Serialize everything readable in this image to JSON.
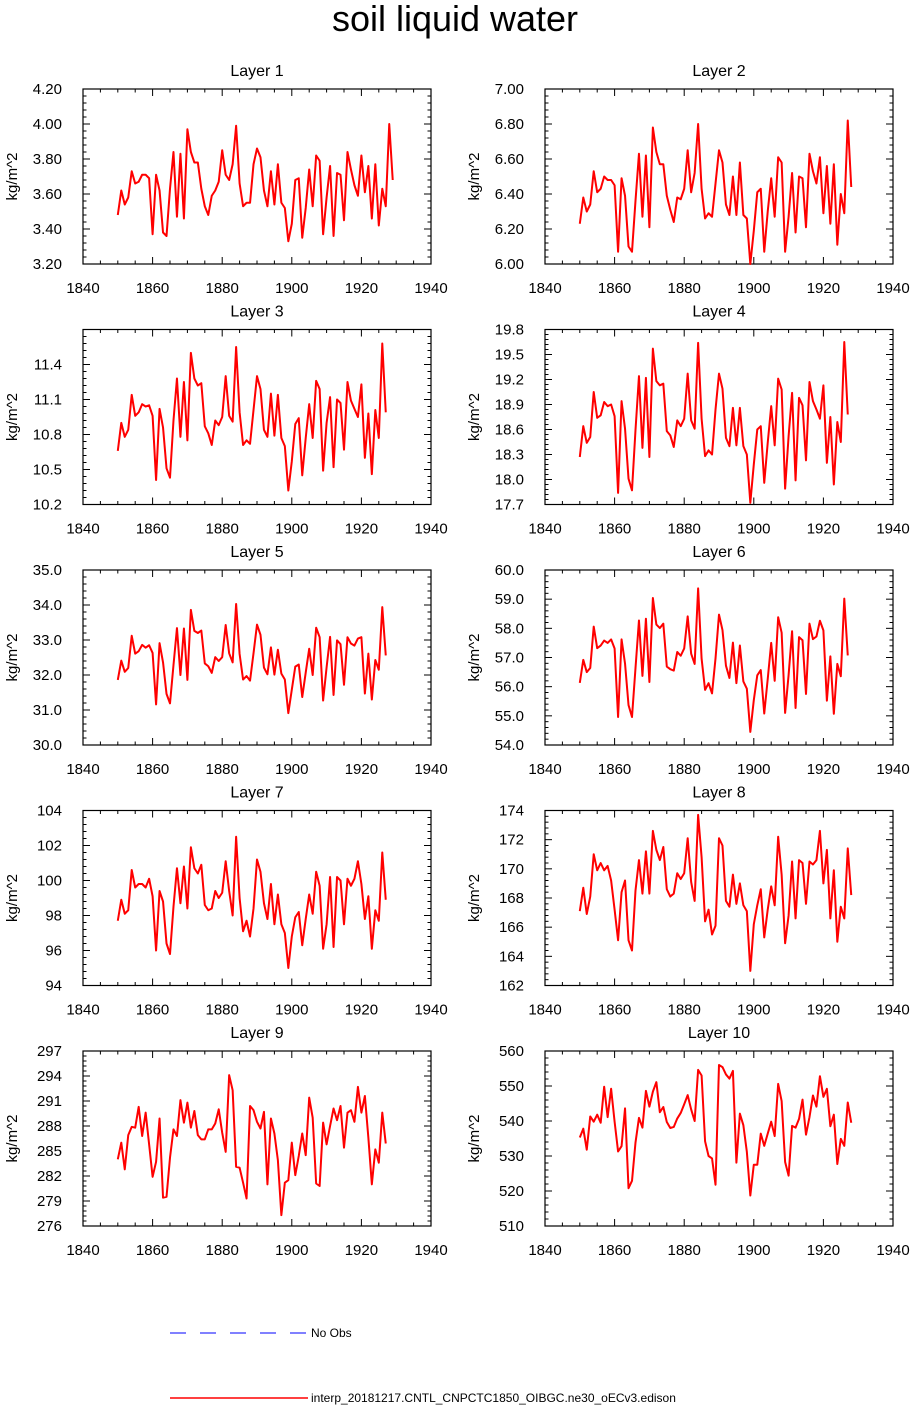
{
  "page_title": "soil liquid water",
  "legend": {
    "obs_label": "No Obs",
    "obs_color": "#0000ff",
    "model_label": "interp_20181217.CNTL_CNPCTC1850_OIBGC.ne30_oECv3.edison",
    "model_color": "#ff0000"
  },
  "chart_data": [
    {
      "type": "line",
      "title": "Layer 1",
      "ylabel": "kg/m^2",
      "xlim": [
        1840,
        1940
      ],
      "xticks": [
        "1840",
        "1860",
        "1880",
        "1900",
        "1920",
        "1940"
      ],
      "ylim": [
        3.2,
        4.2
      ],
      "yticks": [
        "3.20",
        "3.40",
        "3.60",
        "3.80",
        "4.00",
        "4.20"
      ],
      "x_start": 1850,
      "values": [
        3.48,
        3.62,
        3.54,
        3.58,
        3.73,
        3.66,
        3.67,
        3.71,
        3.71,
        3.69,
        3.37,
        3.71,
        3.62,
        3.38,
        3.36,
        3.63,
        3.84,
        3.47,
        3.83,
        3.46,
        3.97,
        3.84,
        3.78,
        3.78,
        3.63,
        3.53,
        3.48,
        3.59,
        3.62,
        3.67,
        3.85,
        3.71,
        3.68,
        3.77,
        3.99,
        3.66,
        3.53,
        3.55,
        3.55,
        3.77,
        3.86,
        3.81,
        3.62,
        3.53,
        3.73,
        3.54,
        3.77,
        3.55,
        3.52,
        3.33,
        3.43,
        3.68,
        3.69,
        3.35,
        3.52,
        3.74,
        3.53,
        3.82,
        3.79,
        3.37,
        3.58,
        3.76,
        3.36,
        3.72,
        3.71,
        3.45,
        3.84,
        3.74,
        3.65,
        3.59,
        3.82,
        3.61,
        3.76,
        3.46,
        3.77,
        3.42,
        3.63,
        3.53,
        4.0,
        3.68
      ]
    },
    {
      "type": "line",
      "title": "Layer 2",
      "ylabel": "kg/m^2",
      "xlim": [
        1840,
        1940
      ],
      "xticks": [
        "1840",
        "1860",
        "1880",
        "1900",
        "1920",
        "1940"
      ],
      "ylim": [
        6.0,
        7.0
      ],
      "yticks": [
        "6.00",
        "6.20",
        "6.40",
        "6.60",
        "6.80",
        "7.00"
      ],
      "x_start": 1850,
      "values": [
        6.23,
        6.38,
        6.3,
        6.34,
        6.53,
        6.41,
        6.43,
        6.5,
        6.48,
        6.48,
        6.45,
        6.07,
        6.49,
        6.39,
        6.1,
        6.07,
        6.36,
        6.63,
        6.27,
        6.62,
        6.21,
        6.78,
        6.64,
        6.57,
        6.57,
        6.39,
        6.31,
        6.24,
        6.38,
        6.37,
        6.43,
        6.65,
        6.41,
        6.52,
        6.8,
        6.43,
        6.26,
        6.29,
        6.27,
        6.46,
        6.65,
        6.58,
        6.34,
        6.28,
        6.5,
        6.28,
        6.58,
        6.28,
        6.26,
        6.0,
        6.19,
        6.41,
        6.43,
        6.07,
        6.3,
        6.49,
        6.27,
        6.61,
        6.58,
        6.07,
        6.27,
        6.52,
        6.18,
        6.5,
        6.49,
        6.21,
        6.63,
        6.53,
        6.46,
        6.61,
        6.29,
        6.56,
        6.23,
        6.57,
        6.11,
        6.4,
        6.29,
        6.82,
        6.44
      ]
    },
    {
      "type": "line",
      "title": "Layer 3",
      "ylabel": "kg/m^2",
      "xlim": [
        1840,
        1940
      ],
      "xticks": [
        "1840",
        "1860",
        "1880",
        "1900",
        "1920",
        "1940"
      ],
      "ylim": [
        10.2,
        11.7
      ],
      "yticks": [
        "10.2",
        "10.5",
        "10.8",
        "11.1",
        "11.4"
      ],
      "x_start": 1850,
      "values": [
        10.66,
        10.9,
        10.78,
        10.84,
        11.14,
        10.96,
        10.99,
        11.06,
        11.04,
        11.05,
        10.96,
        10.41,
        11.02,
        10.86,
        10.51,
        10.43,
        10.92,
        11.28,
        10.78,
        11.25,
        10.75,
        11.5,
        11.28,
        11.22,
        11.24,
        10.87,
        10.81,
        10.71,
        10.92,
        10.88,
        10.95,
        11.3,
        10.96,
        10.91,
        11.55,
        10.99,
        10.71,
        10.75,
        10.72,
        11.01,
        11.3,
        11.19,
        10.84,
        10.78,
        11.15,
        10.79,
        11.14,
        10.77,
        10.7,
        10.32,
        10.57,
        10.89,
        10.94,
        10.45,
        10.77,
        11.06,
        10.77,
        11.26,
        11.19,
        10.49,
        10.9,
        11.12,
        10.52,
        11.1,
        11.07,
        10.67,
        11.25,
        11.09,
        11.02,
        10.95,
        11.23,
        10.6,
        10.98,
        10.46,
        11.01,
        10.77,
        11.58,
        10.99
      ]
    },
    {
      "type": "line",
      "title": "Layer 4",
      "ylabel": "kg/m^2",
      "xlim": [
        1840,
        1940
      ],
      "xticks": [
        "1840",
        "1860",
        "1880",
        "1900",
        "1920",
        "1940"
      ],
      "ylim": [
        17.7,
        19.8
      ],
      "yticks": [
        "17.7",
        "18.0",
        "18.3",
        "18.6",
        "18.9",
        "19.2",
        "19.5",
        "19.8"
      ],
      "x_start": 1850,
      "values": [
        18.27,
        18.64,
        18.44,
        18.51,
        19.05,
        18.74,
        18.77,
        18.93,
        18.88,
        18.9,
        18.76,
        17.84,
        18.94,
        18.61,
        18.01,
        17.87,
        18.59,
        19.24,
        18.38,
        19.22,
        18.27,
        19.57,
        19.18,
        19.13,
        19.15,
        18.58,
        18.53,
        18.39,
        18.71,
        18.64,
        18.73,
        19.27,
        18.71,
        18.61,
        19.64,
        18.73,
        18.28,
        18.35,
        18.3,
        18.84,
        19.27,
        19.09,
        18.5,
        18.4,
        18.86,
        18.41,
        18.86,
        18.4,
        18.3,
        17.72,
        18.18,
        18.6,
        18.64,
        17.96,
        18.44,
        18.88,
        18.41,
        19.21,
        19.08,
        17.89,
        18.52,
        19.04,
        17.99,
        18.98,
        18.89,
        18.23,
        19.17,
        18.94,
        18.84,
        18.73,
        19.13,
        18.2,
        18.75,
        17.94,
        18.69,
        18.45,
        19.65,
        18.78
      ]
    },
    {
      "type": "line",
      "title": "Layer 5",
      "ylabel": "kg/m^2",
      "xlim": [
        1840,
        1940
      ],
      "xticks": [
        "1840",
        "1860",
        "1880",
        "1900",
        "1920",
        "1940"
      ],
      "ylim": [
        30.0,
        35.0
      ],
      "yticks": [
        "30.0",
        "31.0",
        "32.0",
        "33.0",
        "34.0",
        "35.0"
      ],
      "x_start": 1850,
      "values": [
        31.86,
        32.41,
        32.09,
        32.2,
        33.12,
        32.61,
        32.68,
        32.86,
        32.78,
        32.85,
        32.63,
        31.16,
        32.91,
        32.36,
        31.46,
        31.19,
        32.28,
        33.34,
        32.0,
        33.33,
        31.86,
        33.86,
        33.26,
        33.2,
        33.27,
        32.33,
        32.25,
        32.06,
        32.51,
        32.4,
        32.51,
        33.43,
        32.62,
        32.36,
        34.03,
        32.6,
        31.87,
        31.97,
        31.84,
        32.62,
        33.44,
        33.15,
        32.21,
        32.02,
        32.79,
        32.01,
        32.72,
        32.04,
        31.87,
        30.91,
        31.58,
        32.24,
        32.3,
        31.37,
        32.07,
        32.75,
        32.0,
        33.35,
        33.08,
        31.27,
        32.22,
        33.09,
        31.43,
        32.99,
        32.88,
        31.72,
        33.08,
        32.9,
        32.84,
        33.04,
        33.08,
        31.47,
        32.61,
        31.3,
        32.43,
        32.15,
        33.94,
        32.56
      ]
    },
    {
      "type": "line",
      "title": "Layer 6",
      "ylabel": "kg/m^2",
      "xlim": [
        1840,
        1940
      ],
      "xticks": [
        "1840",
        "1860",
        "1880",
        "1900",
        "1920",
        "1940"
      ],
      "ylim": [
        54.0,
        60.0
      ],
      "yticks": [
        "54.0",
        "55.0",
        "56.0",
        "57.0",
        "58.0",
        "59.0",
        "60.0"
      ],
      "x_start": 1850,
      "values": [
        56.13,
        56.92,
        56.5,
        56.64,
        58.06,
        57.32,
        57.41,
        57.58,
        57.5,
        57.62,
        57.31,
        54.96,
        57.62,
        56.79,
        55.37,
        54.96,
        56.63,
        58.27,
        56.37,
        58.33,
        56.16,
        59.04,
        58.13,
        58.01,
        58.16,
        56.69,
        56.6,
        56.55,
        57.19,
        57.06,
        57.31,
        58.41,
        57.13,
        56.78,
        59.37,
        56.96,
        55.89,
        56.12,
        55.77,
        56.97,
        58.47,
        57.94,
        56.72,
        56.3,
        57.51,
        56.12,
        57.41,
        56.18,
        55.93,
        54.45,
        55.54,
        56.39,
        56.57,
        55.08,
        56.26,
        57.5,
        56.2,
        58.38,
        57.85,
        55.1,
        56.4,
        57.9,
        55.27,
        57.7,
        57.59,
        55.75,
        58.16,
        57.63,
        57.72,
        58.26,
        57.93,
        55.52,
        57.04,
        55.07,
        56.78,
        56.36,
        59.02,
        57.07
      ]
    },
    {
      "type": "line",
      "title": "Layer 7",
      "ylabel": "kg/m^2",
      "xlim": [
        1840,
        1940
      ],
      "xticks": [
        "1840",
        "1860",
        "1880",
        "1900",
        "1920",
        "1940"
      ],
      "ylim": [
        94,
        104
      ],
      "yticks": [
        "94",
        "96",
        "98",
        "100",
        "102",
        "104"
      ],
      "x_start": 1850,
      "values": [
        97.7,
        98.9,
        98.1,
        98.3,
        100.6,
        99.6,
        99.8,
        99.8,
        99.6,
        100.1,
        99.1,
        96.0,
        99.4,
        98.8,
        96.4,
        95.8,
        98.5,
        100.7,
        98.7,
        100.8,
        98.4,
        101.9,
        100.7,
        100.4,
        100.9,
        98.6,
        98.3,
        98.4,
        99.4,
        99.0,
        99.3,
        101.1,
        99.4,
        98.0,
        102.5,
        99.0,
        97.1,
        97.7,
        96.8,
        98.4,
        101.2,
        100.5,
        98.7,
        97.8,
        99.8,
        97.5,
        99.2,
        97.5,
        97.0,
        95.0,
        96.8,
        97.9,
        98.2,
        96.3,
        97.8,
        99.2,
        98.1,
        100.5,
        99.7,
        96.1,
        97.5,
        100.2,
        96.2,
        100.2,
        100.0,
        97.5,
        100.1,
        99.7,
        100.1,
        101.1,
        99.8,
        97.8,
        99.1,
        96.1,
        98.3,
        97.7,
        101.6,
        98.9
      ]
    },
    {
      "type": "line",
      "title": "Layer 8",
      "ylabel": "kg/m^2",
      "xlim": [
        1840,
        1940
      ],
      "xticks": [
        "1840",
        "1860",
        "1880",
        "1900",
        "1920",
        "1940"
      ],
      "ylim": [
        162,
        174
      ],
      "yticks": [
        "162",
        "164",
        "166",
        "168",
        "170",
        "172",
        "174"
      ],
      "x_start": 1850,
      "values": [
        167.1,
        168.7,
        166.9,
        168.1,
        171.0,
        169.9,
        170.4,
        169.9,
        170.2,
        169.2,
        167.2,
        165.1,
        168.4,
        169.2,
        165.1,
        164.4,
        168.5,
        170.6,
        168.3,
        171.2,
        168.3,
        172.6,
        171.3,
        170.6,
        171.5,
        168.6,
        168.1,
        168.3,
        169.7,
        169.3,
        169.7,
        172.1,
        169.1,
        167.8,
        173.7,
        170.8,
        166.4,
        167.2,
        165.5,
        166.1,
        172.1,
        171.6,
        167.8,
        167.4,
        169.6,
        167.6,
        169.0,
        167.5,
        167.1,
        163.0,
        166.2,
        167.5,
        168.6,
        165.3,
        167.2,
        168.8,
        167.5,
        172.2,
        169.6,
        164.9,
        166.8,
        170.5,
        166.6,
        170.6,
        170.4,
        167.6,
        170.5,
        170.3,
        170.6,
        172.6,
        169.0,
        171.3,
        166.6,
        169.9,
        165.0,
        167.4,
        166.6,
        171.4,
        168.2
      ]
    },
    {
      "type": "line",
      "title": "Layer 9",
      "ylabel": "kg/m^2",
      "xlim": [
        1840,
        1940
      ],
      "xticks": [
        "1840",
        "1860",
        "1880",
        "1900",
        "1920",
        "1940"
      ],
      "ylim": [
        276,
        297
      ],
      "yticks": [
        "276",
        "279",
        "282",
        "285",
        "288",
        "291",
        "294",
        "297"
      ],
      "x_start": 1850,
      "values": [
        284.0,
        286.0,
        282.8,
        286.9,
        287.9,
        287.8,
        290.3,
        286.8,
        289.6,
        285.8,
        281.9,
        283.7,
        288.9,
        279.4,
        279.5,
        284.2,
        287.6,
        286.8,
        291.1,
        288.4,
        290.8,
        287.8,
        289.8,
        286.9,
        286.4,
        286.4,
        287.6,
        287.6,
        288.3,
        290.0,
        287.2,
        284.9,
        294.1,
        292.3,
        283.1,
        283.0,
        281.2,
        279.3,
        290.4,
        289.9,
        288.5,
        287.7,
        289.7,
        281.0,
        288.9,
        287.1,
        283.9,
        277.3,
        281.2,
        281.5,
        286.0,
        282.1,
        284.4,
        287.1,
        284.5,
        291.4,
        289.0,
        281.1,
        280.8,
        288.4,
        285.8,
        288.0,
        290.1,
        288.7,
        290.4,
        285.4,
        289.6,
        289.9,
        288.5,
        292.7,
        289.6,
        291.6,
        286.6,
        281.0,
        285.2,
        283.6,
        289.6,
        285.9
      ]
    },
    {
      "type": "line",
      "title": "Layer 10",
      "ylabel": "kg/m^2",
      "xlim": [
        1840,
        1940
      ],
      "xticks": [
        "1840",
        "1860",
        "1880",
        "1900",
        "1920",
        "1940"
      ],
      "ylim": [
        510,
        560
      ],
      "yticks": [
        "510",
        "520",
        "530",
        "540",
        "550",
        "560"
      ],
      "x_start": 1850,
      "values": [
        535.3,
        537.8,
        531.8,
        541.3,
        539.8,
        541.8,
        539.5,
        549.8,
        541.1,
        549.2,
        539.8,
        531.3,
        532.8,
        543.6,
        520.8,
        522.9,
        533.8,
        540.9,
        538.1,
        548.6,
        544.1,
        548.4,
        551.1,
        542.5,
        544.0,
        539.7,
        538.0,
        538.3,
        540.7,
        542.3,
        544.8,
        547.4,
        543.3,
        540.0,
        554.6,
        553.0,
        534.2,
        530.0,
        529.3,
        521.8,
        556.0,
        555.4,
        553.3,
        552.1,
        554.3,
        528.1,
        542.1,
        538.8,
        531.2,
        518.7,
        527.5,
        527.5,
        536.4,
        532.9,
        536.4,
        539.8,
        535.7,
        550.6,
        545.7,
        528.3,
        524.4,
        538.6,
        538.1,
        540.6,
        546.1,
        536.1,
        541.1,
        547.3,
        544.1,
        552.8,
        546.9,
        549.2,
        538.5,
        541.8,
        527.7,
        534.9,
        532.9,
        545.3,
        539.5
      ]
    }
  ]
}
